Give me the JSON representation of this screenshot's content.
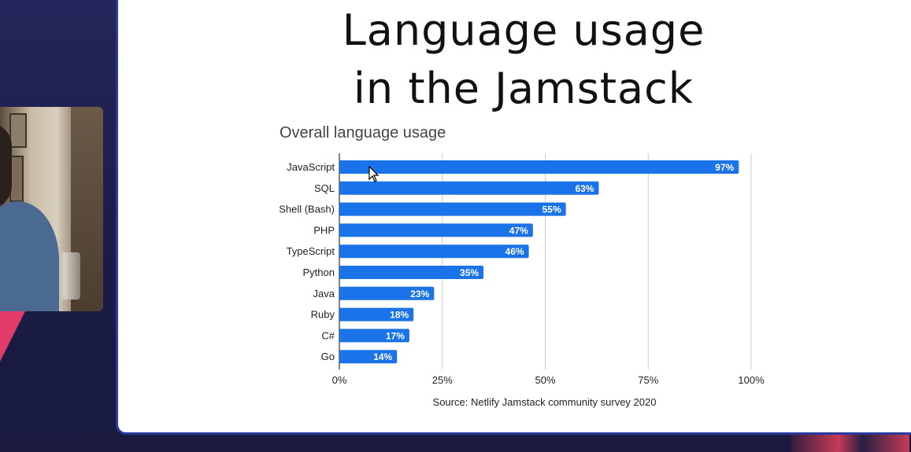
{
  "slide": {
    "title_lines": [
      "Language usage",
      "in the Jamstack"
    ],
    "source": "Source: Netlify Jamstack community survey 2020"
  },
  "colors": {
    "bar": "#1a73e8",
    "grid": "#cccccc",
    "text": "#222222",
    "slide_bg": "#ffffff",
    "stage_bg": "#1c1f4a"
  },
  "chart_data": {
    "type": "bar",
    "orientation": "horizontal",
    "title": "Overall language usage",
    "categories": [
      "JavaScript",
      "SQL",
      "Shell (Bash)",
      "PHP",
      "TypeScript",
      "Python",
      "Java",
      "Ruby",
      "C#",
      "Go"
    ],
    "values": [
      97,
      63,
      55,
      47,
      46,
      35,
      23,
      18,
      17,
      14
    ],
    "value_labels": [
      "97%",
      "63%",
      "55%",
      "47%",
      "46%",
      "35%",
      "23%",
      "18%",
      "17%",
      "14%"
    ],
    "xlim": [
      0,
      100
    ],
    "x_ticks": [
      "0%",
      "25%",
      "50%",
      "75%",
      "100%"
    ],
    "grid": true,
    "xlabel": "",
    "ylabel": ""
  }
}
